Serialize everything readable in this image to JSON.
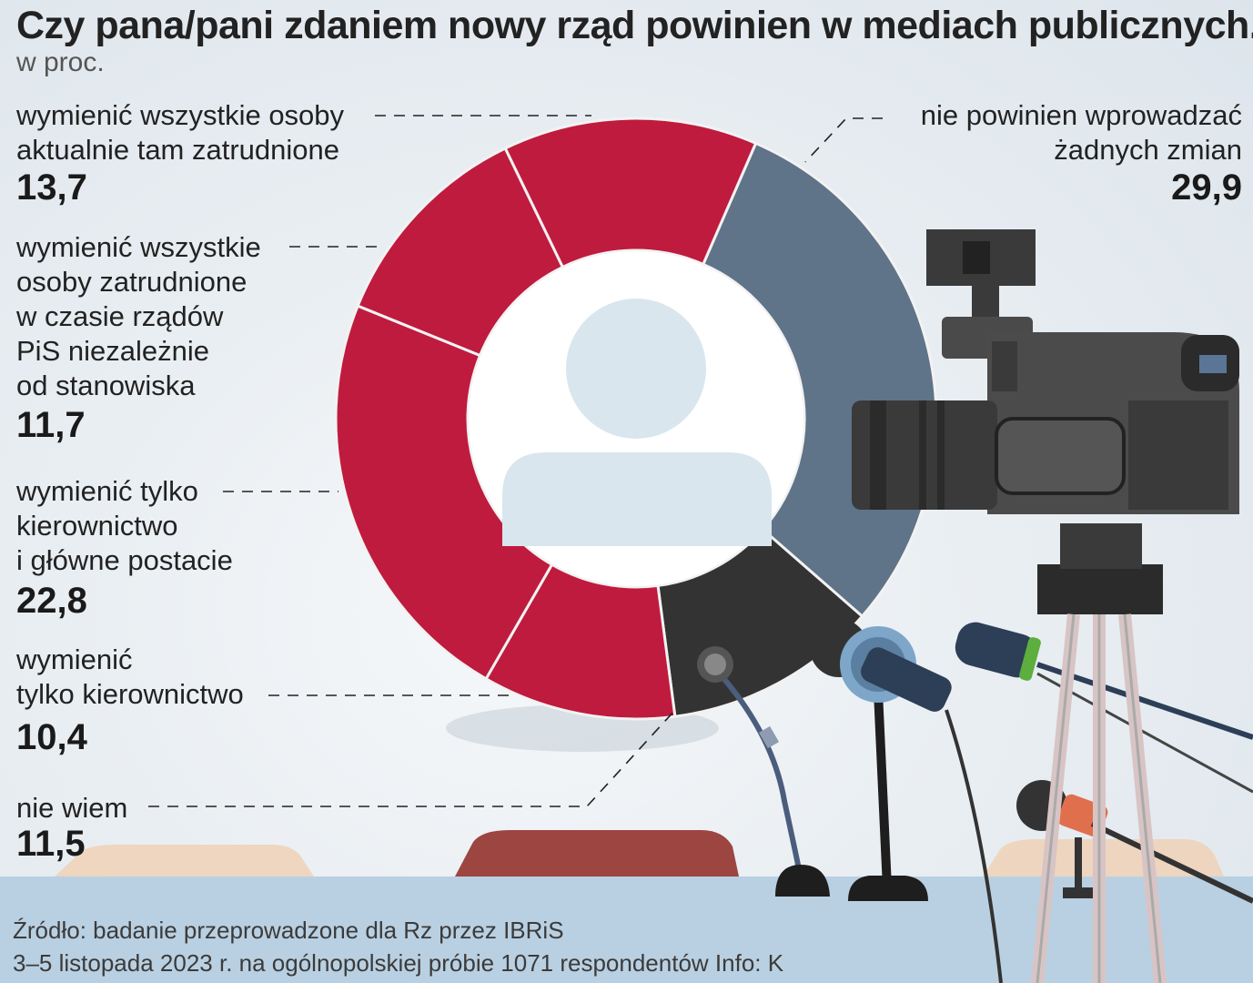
{
  "title": "Czy pana/pani zdaniem nowy rząd powinien w mediach publicznych...",
  "subtitle": "w proc.",
  "chart_data": {
    "type": "pie",
    "variant": "donut",
    "unit": "%",
    "slices": [
      {
        "label": "nie powinien wprowadzać żadnych zmian",
        "lines": [
          "nie powinien wprowadzać",
          "żadnych zmian"
        ],
        "value": 29.9,
        "display": "29,9",
        "color": "#5f7389"
      },
      {
        "label": "nie wiem",
        "lines": [
          "nie wiem"
        ],
        "value": 11.5,
        "display": "11,5",
        "color": "#333333"
      },
      {
        "label": "wymienić tylko kierownictwo",
        "lines": [
          "wymienić",
          "tylko kierownictwo"
        ],
        "value": 10.4,
        "display": "10,4",
        "color": "#bf1b3e"
      },
      {
        "label": "wymienić tylko kierownictwo i główne postacie",
        "lines": [
          "wymienić tylko",
          "kierownictwo",
          "i główne postacie"
        ],
        "value": 22.8,
        "display": "22,8",
        "color": "#bf1b3e"
      },
      {
        "label": "wymienić wszystkie osoby zatrudnione w czasie rządów PiS niezależnie od stanowiska",
        "lines": [
          "wymienić wszystkie",
          "osoby zatrudnione",
          "w czasie rządów",
          "PiS niezależnie",
          "od stanowiska"
        ],
        "value": 11.7,
        "display": "11,7",
        "color": "#bf1b3e"
      },
      {
        "label": "wymienić wszystkie osoby aktualnie tam zatrudnione",
        "lines": [
          "wymienić wszystkie osoby",
          "aktualnie tam zatrudnione"
        ],
        "value": 13.7,
        "display": "13,7",
        "color": "#bf1b3e"
      }
    ]
  },
  "footer": {
    "source_line1": "Źródło: badanie przeprowadzone dla Rz przez IBRiS",
    "source_line2": "3–5 listopada 2023 r. na ogólnopolskiej próbie 1071 respondentów  Info: K"
  },
  "colors": {
    "red": "#bf1b3e",
    "slate": "#5f7389",
    "dark": "#333333",
    "band": "#b9d0e2"
  },
  "icons": [
    "person-silhouette-icon",
    "video-camera-icon",
    "microphone-icon"
  ]
}
